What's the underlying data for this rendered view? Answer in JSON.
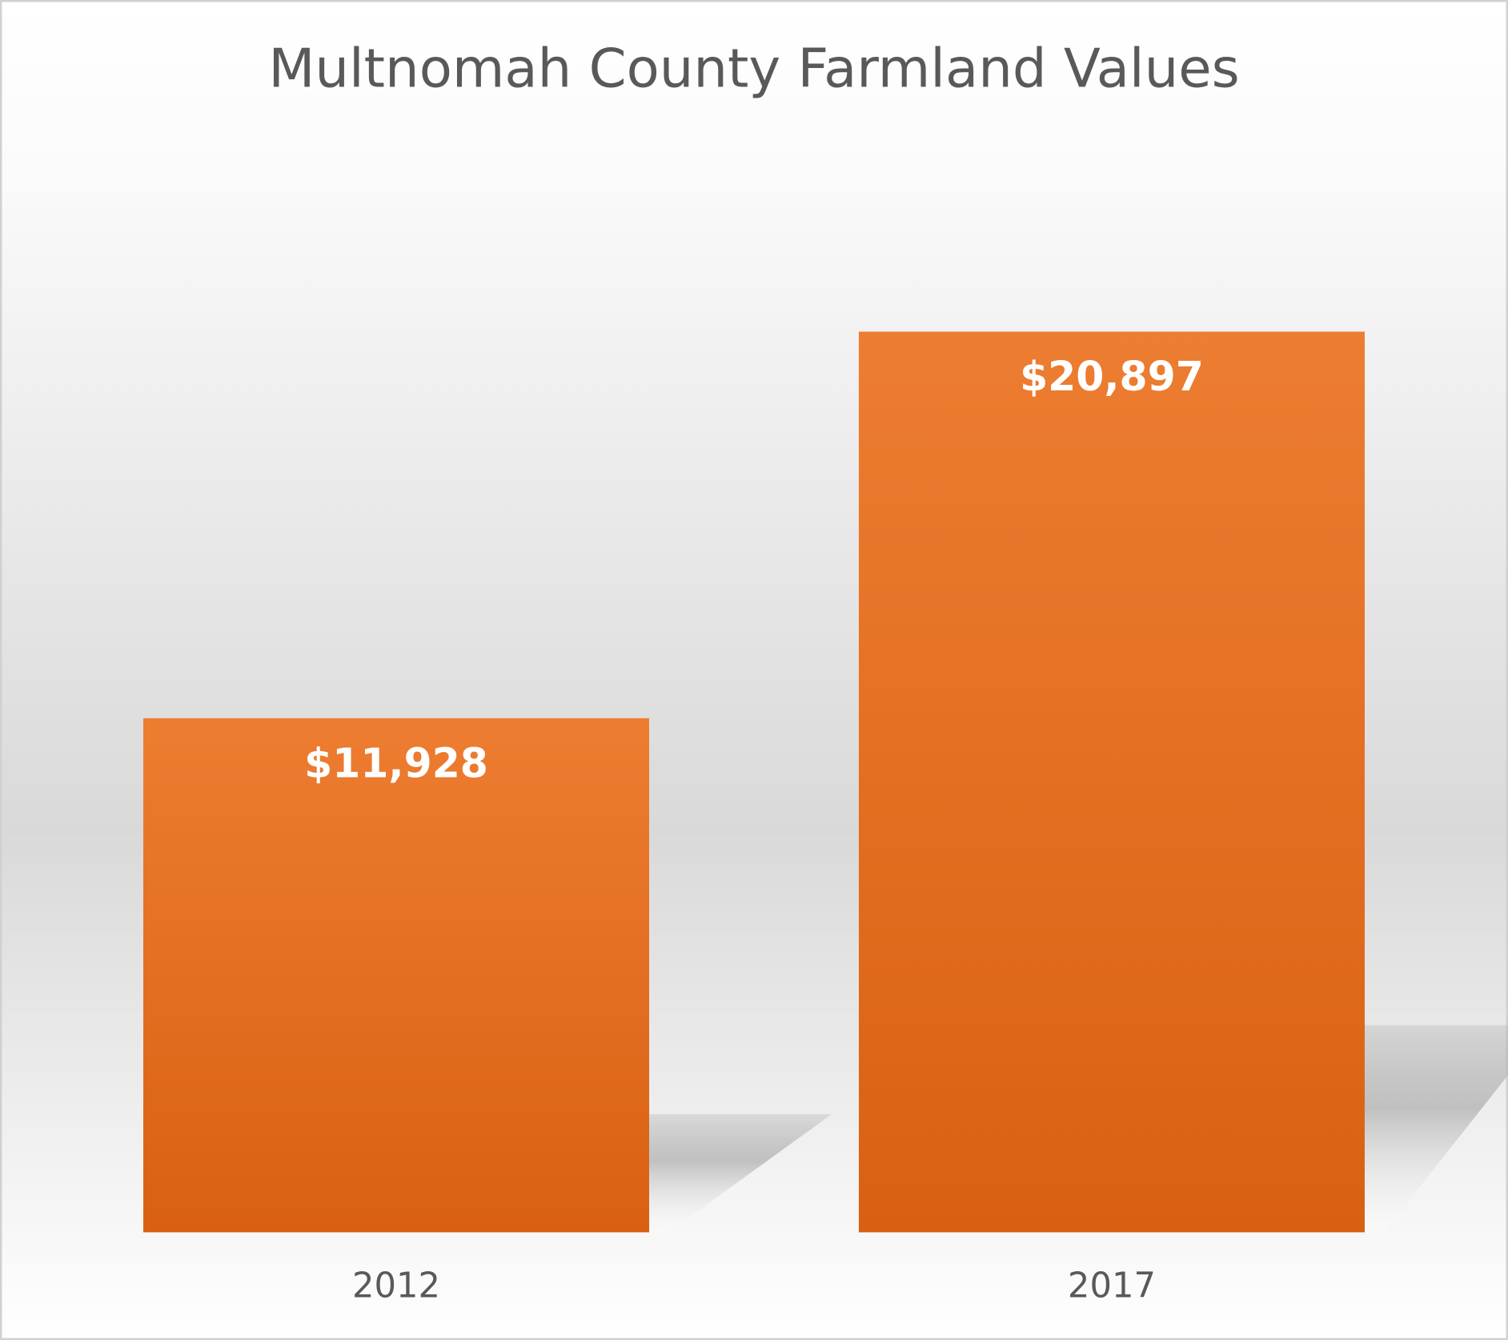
{
  "chart_data": {
    "type": "bar",
    "title": "Multnomah County Farmland Values",
    "categories": [
      "2012",
      "2017"
    ],
    "values": [
      11928,
      20897
    ],
    "value_labels": [
      "$11,928",
      "$20,897"
    ],
    "color": "#ED7D31"
  }
}
